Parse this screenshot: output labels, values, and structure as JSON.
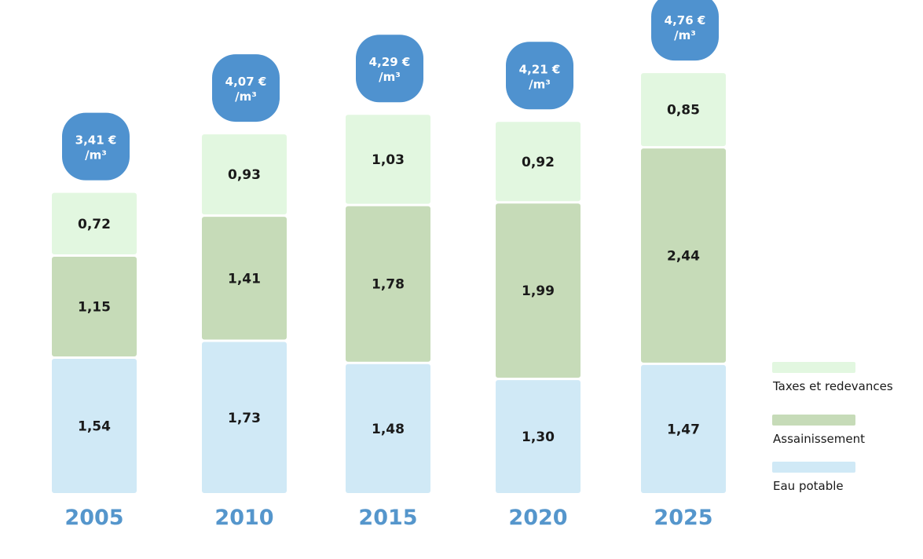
{
  "chart_data": {
    "type": "bar",
    "stacked": true,
    "categories": [
      "2005",
      "2010",
      "2015",
      "2020",
      "2025"
    ],
    "series": [
      {
        "name": "Eau potable",
        "values": [
          1.54,
          1.73,
          1.48,
          1.3,
          1.47
        ],
        "labels": [
          "1,54",
          "1,73",
          "1,48",
          "1,30",
          "1,47"
        ],
        "color": "#d0e9f6"
      },
      {
        "name": "Assainissement",
        "values": [
          1.15,
          1.41,
          1.78,
          1.99,
          2.44
        ],
        "labels": [
          "1,15",
          "1,41",
          "1,78",
          "1,99",
          "2,44"
        ],
        "color": "#c6dbb8"
      },
      {
        "name": "Taxes et redevances",
        "values": [
          0.72,
          0.93,
          1.03,
          0.92,
          0.85
        ],
        "labels": [
          "0,72",
          "0,93",
          "1,03",
          "0,92",
          "0,85"
        ],
        "color": "#e2f7e0"
      }
    ],
    "totals": [
      3.41,
      4.07,
      4.29,
      4.21,
      4.76
    ],
    "total_labels": [
      "3,41 €",
      "4,07 €",
      "4,29 €",
      "4,21 €",
      "4,76 €"
    ],
    "total_unit": "/m³",
    "legend_position": "right",
    "grid": false,
    "colors": {
      "year_label": "#5596cc",
      "total_badge": "#4f92cf"
    }
  }
}
